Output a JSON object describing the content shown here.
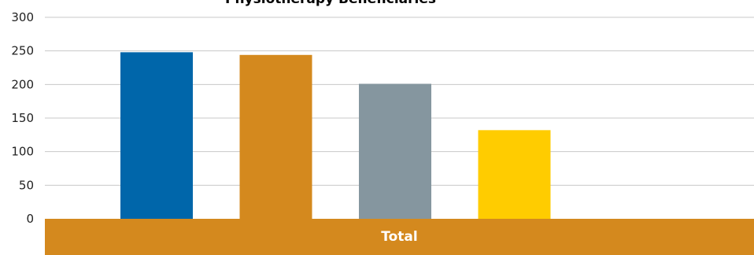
{
  "chart_data": {
    "type": "bar",
    "title": "Physiotherapy Beneficiaries",
    "categories": [
      "Total"
    ],
    "series": [
      {
        "values": [
          248
        ],
        "color": "#0066AA"
      },
      {
        "values": [
          244
        ],
        "color": "#D4891E"
      },
      {
        "values": [
          201
        ],
        "color": "#85969F"
      },
      {
        "values": [
          132
        ],
        "color": "#FFCC00"
      }
    ],
    "ylim": [
      0,
      300
    ],
    "yticks": [
      0,
      50,
      100,
      150,
      200,
      250,
      300
    ],
    "grid": true,
    "category_band_color": "#D4891E",
    "xlabel": "",
    "ylabel": ""
  }
}
